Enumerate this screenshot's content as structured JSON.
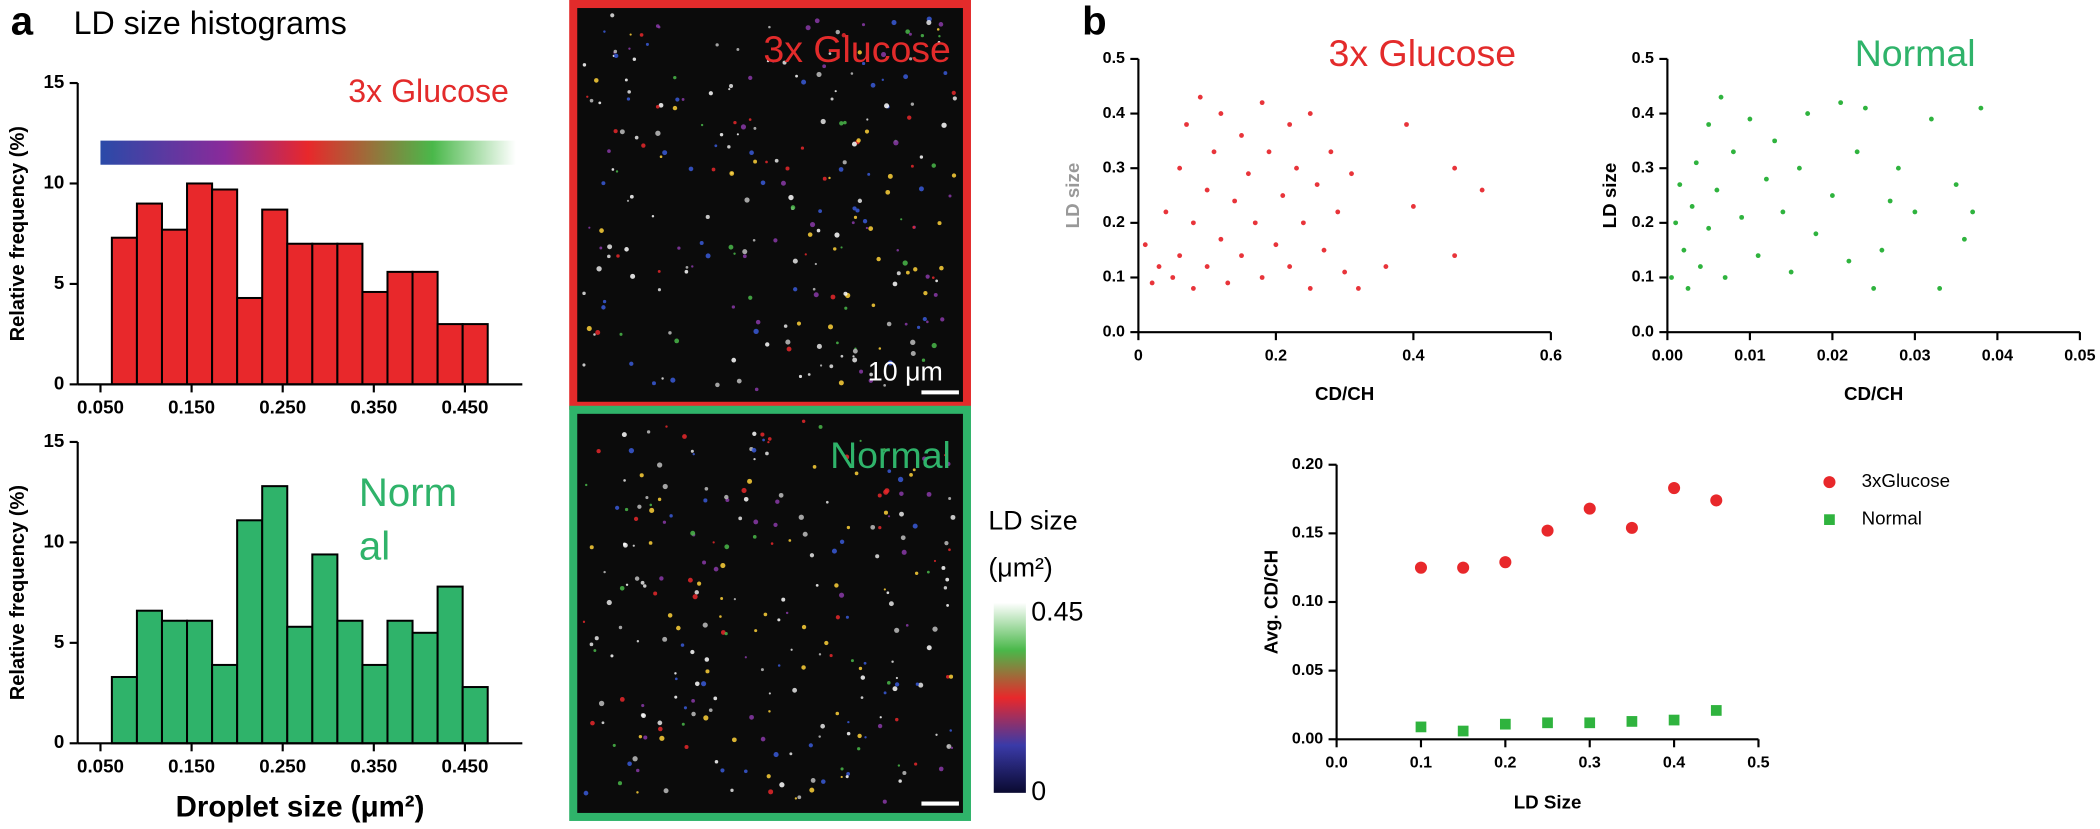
{
  "figure": {
    "panel_a": "a",
    "panel_b": "b",
    "heading": "LD size histograms",
    "images": [
      {
        "label": "3x Glucose",
        "label_color": "#e32b2b",
        "border": "#e32b2b",
        "scale_bar": "10 μm"
      },
      {
        "label": "Normal",
        "label_color": "#2fb36a",
        "border": "#2fb36a"
      }
    ],
    "colorbar": {
      "title_lines": [
        "LD size",
        "(μm²)"
      ],
      "max": "0.45",
      "min": "0"
    }
  },
  "chart_data": [
    {
      "type": "histogram",
      "annotation": [
        "3x Glucose"
      ],
      "annotation_color": "#e32b2b",
      "color": "#e8282b",
      "ylabel": "Relative frequency (%)",
      "bins": [
        0.0625,
        0.09,
        0.1175,
        0.145,
        0.1725,
        0.2,
        0.2275,
        0.255,
        0.2825,
        0.31,
        0.3375,
        0.365,
        0.3925,
        0.42,
        0.4475,
        0.475
      ],
      "values": [
        7.3,
        9.0,
        7.7,
        10.0,
        9.7,
        4.3,
        8.7,
        7.0,
        7.0,
        7.0,
        4.6,
        5.6,
        5.6,
        3.0,
        3.0
      ],
      "xlim": [
        0.025,
        0.513
      ],
      "xticks": [
        {
          "value": 0.05,
          "label": "0.050"
        },
        {
          "value": 0.15,
          "label": "0.150"
        },
        {
          "value": 0.25,
          "label": "0.250"
        },
        {
          "value": 0.35,
          "label": "0.350"
        },
        {
          "value": 0.45,
          "label": "0.450"
        }
      ],
      "ylim": [
        0,
        15
      ],
      "yticks": [
        0,
        5,
        10,
        15
      ]
    },
    {
      "type": "histogram",
      "annotation": [
        "Norm",
        "al"
      ],
      "annotation_color": "#2fb36a",
      "color": "#2fb36a",
      "ylabel": "Relative frequency (%)",
      "xlabel": "Droplet size (μm²)",
      "bins": [
        0.0625,
        0.09,
        0.1175,
        0.145,
        0.1725,
        0.2,
        0.2275,
        0.255,
        0.2825,
        0.31,
        0.3375,
        0.365,
        0.3925,
        0.42,
        0.4475,
        0.475
      ],
      "values": [
        3.3,
        6.6,
        6.1,
        6.1,
        3.9,
        11.1,
        12.8,
        5.8,
        9.4,
        6.1,
        3.9,
        6.1,
        5.5,
        7.8,
        2.8
      ],
      "xlim": [
        0.025,
        0.513
      ],
      "xticks": [
        {
          "value": 0.05,
          "label": "0.050"
        },
        {
          "value": 0.15,
          "label": "0.150"
        },
        {
          "value": 0.25,
          "label": "0.250"
        },
        {
          "value": 0.35,
          "label": "0.350"
        },
        {
          "value": 0.45,
          "label": "0.450"
        }
      ],
      "ylim": [
        0,
        15
      ],
      "yticks": [
        0,
        5,
        10,
        15
      ]
    },
    {
      "type": "scatter",
      "annotation": [
        "3x Glucose"
      ],
      "annotation_color": "#e32b2b",
      "color": "#e8343a",
      "xlabel": "CD/CH",
      "ylabel": "LD size",
      "x": [
        0.01,
        0.02,
        0.03,
        0.04,
        0.05,
        0.06,
        0.06,
        0.07,
        0.08,
        0.08,
        0.09,
        0.1,
        0.1,
        0.11,
        0.12,
        0.12,
        0.13,
        0.14,
        0.15,
        0.15,
        0.16,
        0.17,
        0.18,
        0.18,
        0.19,
        0.2,
        0.21,
        0.22,
        0.22,
        0.23,
        0.24,
        0.25,
        0.25,
        0.26,
        0.27,
        0.28,
        0.29,
        0.3,
        0.31,
        0.32,
        0.36,
        0.39,
        0.4,
        0.46,
        0.46,
        0.5
      ],
      "values": [
        0.16,
        0.09,
        0.12,
        0.22,
        0.1,
        0.3,
        0.14,
        0.38,
        0.2,
        0.08,
        0.43,
        0.26,
        0.12,
        0.33,
        0.17,
        0.4,
        0.09,
        0.24,
        0.36,
        0.14,
        0.29,
        0.2,
        0.42,
        0.1,
        0.33,
        0.16,
        0.25,
        0.38,
        0.12,
        0.3,
        0.2,
        0.4,
        0.08,
        0.27,
        0.15,
        0.33,
        0.22,
        0.11,
        0.29,
        0.08,
        0.12,
        0.38,
        0.23,
        0.3,
        0.14,
        0.26
      ],
      "xlim": [
        0,
        0.6
      ],
      "xticks": [
        0,
        0.2,
        0.4,
        0.6
      ],
      "ylim": [
        0,
        0.5
      ],
      "yticks": [
        {
          "value": 0,
          "label": "0.0"
        },
        0.1,
        0.2,
        0.3,
        0.4,
        0.5
      ]
    },
    {
      "type": "scatter",
      "annotation": [
        "Normal"
      ],
      "annotation_color": "#2fb36a",
      "color": "#2fb33e",
      "xlabel": "CD/CH",
      "ylabel": "LD size",
      "x": [
        0.0005,
        0.001,
        0.0015,
        0.002,
        0.0025,
        0.003,
        0.0035,
        0.004,
        0.005,
        0.005,
        0.006,
        0.0065,
        0.007,
        0.008,
        0.009,
        0.01,
        0.011,
        0.012,
        0.013,
        0.014,
        0.015,
        0.016,
        0.017,
        0.018,
        0.02,
        0.021,
        0.022,
        0.023,
        0.024,
        0.025,
        0.026,
        0.027,
        0.028,
        0.03,
        0.032,
        0.033,
        0.035,
        0.036,
        0.037,
        0.038
      ],
      "values": [
        0.1,
        0.2,
        0.27,
        0.15,
        0.08,
        0.23,
        0.31,
        0.12,
        0.19,
        0.38,
        0.26,
        0.43,
        0.1,
        0.33,
        0.21,
        0.39,
        0.14,
        0.28,
        0.35,
        0.22,
        0.11,
        0.3,
        0.4,
        0.18,
        0.25,
        0.42,
        0.13,
        0.33,
        0.41,
        0.08,
        0.15,
        0.24,
        0.3,
        0.22,
        0.39,
        0.08,
        0.27,
        0.17,
        0.22,
        0.41
      ],
      "xlim": [
        0,
        0.05
      ],
      "xticks": [
        {
          "value": 0,
          "label": "0.00"
        },
        {
          "value": 0.01,
          "label": "0.01"
        },
        {
          "value": 0.02,
          "label": "0.02"
        },
        {
          "value": 0.03,
          "label": "0.03"
        },
        {
          "value": 0.04,
          "label": "0.04"
        },
        {
          "value": 0.05,
          "label": "0.05"
        }
      ],
      "ylim": [
        0,
        0.5
      ],
      "yticks": [
        {
          "value": 0,
          "label": "0.0"
        },
        0.1,
        0.2,
        0.3,
        0.4,
        0.5
      ]
    },
    {
      "type": "scatter",
      "xlabel": "LD Size",
      "ylabel": "Avg. CD/CH",
      "legend": "right",
      "x": [
        0.1,
        0.15,
        0.2,
        0.25,
        0.3,
        0.35,
        0.4,
        0.45
      ],
      "series": [
        {
          "name": "3xGlucose",
          "color": "#e8282b",
          "marker": "circle",
          "values": [
            0.125,
            0.125,
            0.129,
            0.152,
            0.168,
            0.154,
            0.183,
            0.174
          ]
        },
        {
          "name": "Normal",
          "color": "#2fb33e",
          "marker": "square",
          "values": [
            0.009,
            0.006,
            0.011,
            0.012,
            0.012,
            0.013,
            0.014,
            0.021
          ]
        }
      ],
      "xlim": [
        0,
        0.5
      ],
      "xticks": [
        {
          "value": 0,
          "label": "0.0"
        },
        0.1,
        0.2,
        0.3,
        0.4,
        0.5
      ],
      "ylim": [
        0,
        0.2
      ],
      "yticks": [
        {
          "value": 0,
          "label": "0.00"
        },
        {
          "value": 0.05,
          "label": "0.05"
        },
        {
          "value": 0.1,
          "label": "0.10"
        },
        {
          "value": 0.15,
          "label": "0.15"
        },
        {
          "value": 0.2,
          "label": "0.20"
        }
      ]
    }
  ]
}
